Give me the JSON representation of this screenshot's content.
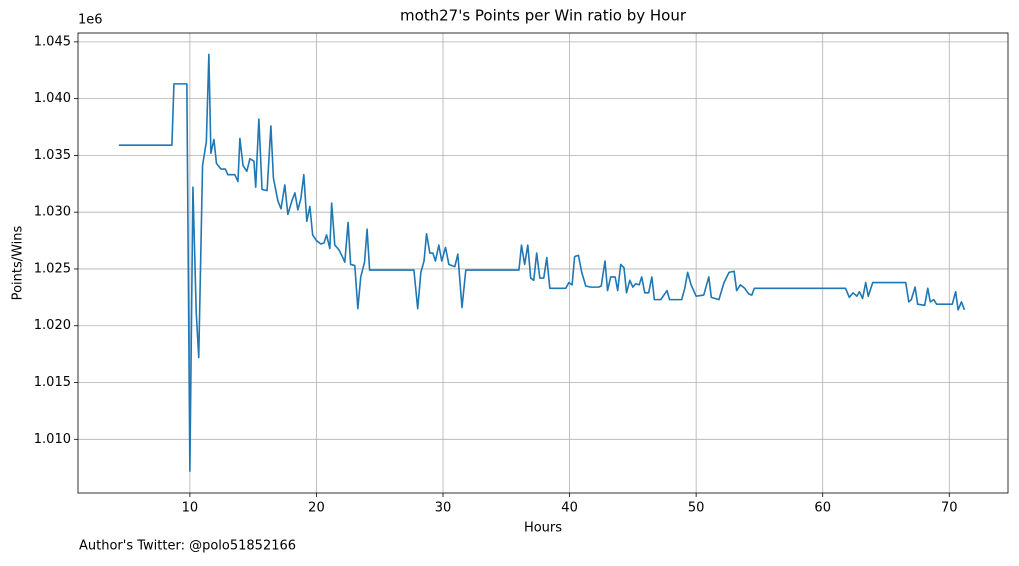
{
  "chart_data": {
    "type": "line",
    "title": "moth27's Points per Win ratio by Hour",
    "xlabel": "Hours",
    "ylabel": "Points/Wins",
    "y_offset_label": "1e6",
    "footer": "Author's Twitter: @polo51852166",
    "color": "#1f77b4",
    "grid": true,
    "xlim": [
      1.16,
      74.64
    ],
    "ylim": [
      1.00527,
      1.04578
    ],
    "xticks": [
      10,
      20,
      30,
      40,
      50,
      60,
      70
    ],
    "yticks": [
      {
        "value": 1.01,
        "label": "1.010"
      },
      {
        "value": 1.015,
        "label": "1.015"
      },
      {
        "value": 1.02,
        "label": "1.020"
      },
      {
        "value": 1.025,
        "label": "1.025"
      },
      {
        "value": 1.03,
        "label": "1.030"
      },
      {
        "value": 1.035,
        "label": "1.035"
      },
      {
        "value": 1.04,
        "label": "1.040"
      },
      {
        "value": 1.045,
        "label": "1.045"
      }
    ],
    "x": [
      4.39,
      8.58,
      8.74,
      9.76,
      10.0,
      10.24,
      10.5,
      10.7,
      11.0,
      11.3,
      11.5,
      11.66,
      11.9,
      12.1,
      12.45,
      12.8,
      13.0,
      13.55,
      13.8,
      13.95,
      14.2,
      14.5,
      14.74,
      15.06,
      15.2,
      15.45,
      15.7,
      16.1,
      16.4,
      16.6,
      16.95,
      17.2,
      17.5,
      17.74,
      18.06,
      18.3,
      18.53,
      18.77,
      19.0,
      19.24,
      19.48,
      19.7,
      20.0,
      20.35,
      20.6,
      20.8,
      21.06,
      21.2,
      21.45,
      21.77,
      22.0,
      22.24,
      22.5,
      22.7,
      23.03,
      23.27,
      23.5,
      23.8,
      24.0,
      24.2,
      27.7,
      28.0,
      28.25,
      28.5,
      28.7,
      28.96,
      29.2,
      29.4,
      29.67,
      29.9,
      30.2,
      30.46,
      30.93,
      31.17,
      31.5,
      31.8,
      36.0,
      36.2,
      36.45,
      36.7,
      36.93,
      37.17,
      37.4,
      37.65,
      37.96,
      38.2,
      38.44,
      39.7,
      39.94,
      40.2,
      40.4,
      40.7,
      40.96,
      41.28,
      41.67,
      42.3,
      42.5,
      42.8,
      43.0,
      43.25,
      43.6,
      43.8,
      44.04,
      44.3,
      44.5,
      44.76,
      45.0,
      45.23,
      45.5,
      45.7,
      45.94,
      46.25,
      46.5,
      46.7,
      47.2,
      47.7,
      47.9,
      48.86,
      49.1,
      49.33,
      49.6,
      50.0,
      50.6,
      51.0,
      51.2,
      51.8,
      52.2,
      52.6,
      53.0,
      53.2,
      53.5,
      53.84,
      54.15,
      54.4,
      54.6,
      61.8,
      62.1,
      62.4,
      62.7,
      62.9,
      63.15,
      63.4,
      63.6,
      63.95,
      66.56,
      66.8,
      67.0,
      67.3,
      67.5,
      68.06,
      68.3,
      68.5,
      68.77,
      69.0,
      70.24,
      70.5,
      70.7,
      70.96,
      71.2
    ],
    "values": [
      1.0359,
      1.0359,
      1.0413,
      1.0413,
      1.0072,
      1.0322,
      1.0212,
      1.0172,
      1.0341,
      1.0362,
      1.0439,
      1.0352,
      1.0364,
      1.0343,
      1.0338,
      1.0338,
      1.0333,
      1.0333,
      1.0327,
      1.0365,
      1.0341,
      1.0336,
      1.0347,
      1.0345,
      1.0322,
      1.0382,
      1.032,
      1.0319,
      1.0376,
      1.033,
      1.031,
      1.0303,
      1.0324,
      1.0298,
      1.031,
      1.0317,
      1.0302,
      1.0312,
      1.0333,
      1.0292,
      1.0305,
      1.028,
      1.0275,
      1.0272,
      1.0273,
      1.028,
      1.0268,
      1.0308,
      1.0271,
      1.0267,
      1.0262,
      1.0256,
      1.0291,
      1.0254,
      1.0253,
      1.0215,
      1.0243,
      1.0256,
      1.0285,
      1.0249,
      1.0249,
      1.0215,
      1.0247,
      1.0257,
      1.0281,
      1.0264,
      1.0264,
      1.0257,
      1.0271,
      1.0257,
      1.0269,
      1.0254,
      1.0252,
      1.0263,
      1.0216,
      1.0249,
      1.0249,
      1.0271,
      1.0254,
      1.0271,
      1.0242,
      1.024,
      1.0264,
      1.0242,
      1.0242,
      1.026,
      1.0233,
      1.0233,
      1.0238,
      1.0236,
      1.0261,
      1.0262,
      1.0247,
      1.0235,
      1.0234,
      1.0234,
      1.0235,
      1.0257,
      1.0231,
      1.0243,
      1.0243,
      1.0231,
      1.0254,
      1.0251,
      1.0229,
      1.024,
      1.0234,
      1.0237,
      1.0236,
      1.0243,
      1.0229,
      1.0229,
      1.0243,
      1.0223,
      1.0223,
      1.0231,
      1.0223,
      1.0223,
      1.0233,
      1.0247,
      1.0236,
      1.0226,
      1.0227,
      1.0243,
      1.0225,
      1.0223,
      1.0238,
      1.0247,
      1.0248,
      1.0231,
      1.0236,
      1.0233,
      1.0228,
      1.0227,
      1.0233,
      1.0233,
      1.0225,
      1.0229,
      1.0226,
      1.023,
      1.0224,
      1.0238,
      1.0226,
      1.0238,
      1.0238,
      1.0221,
      1.0223,
      1.0234,
      1.0219,
      1.0218,
      1.0233,
      1.0221,
      1.0223,
      1.0219,
      1.0219,
      1.023,
      1.0214,
      1.0221,
      1.0214
    ]
  }
}
